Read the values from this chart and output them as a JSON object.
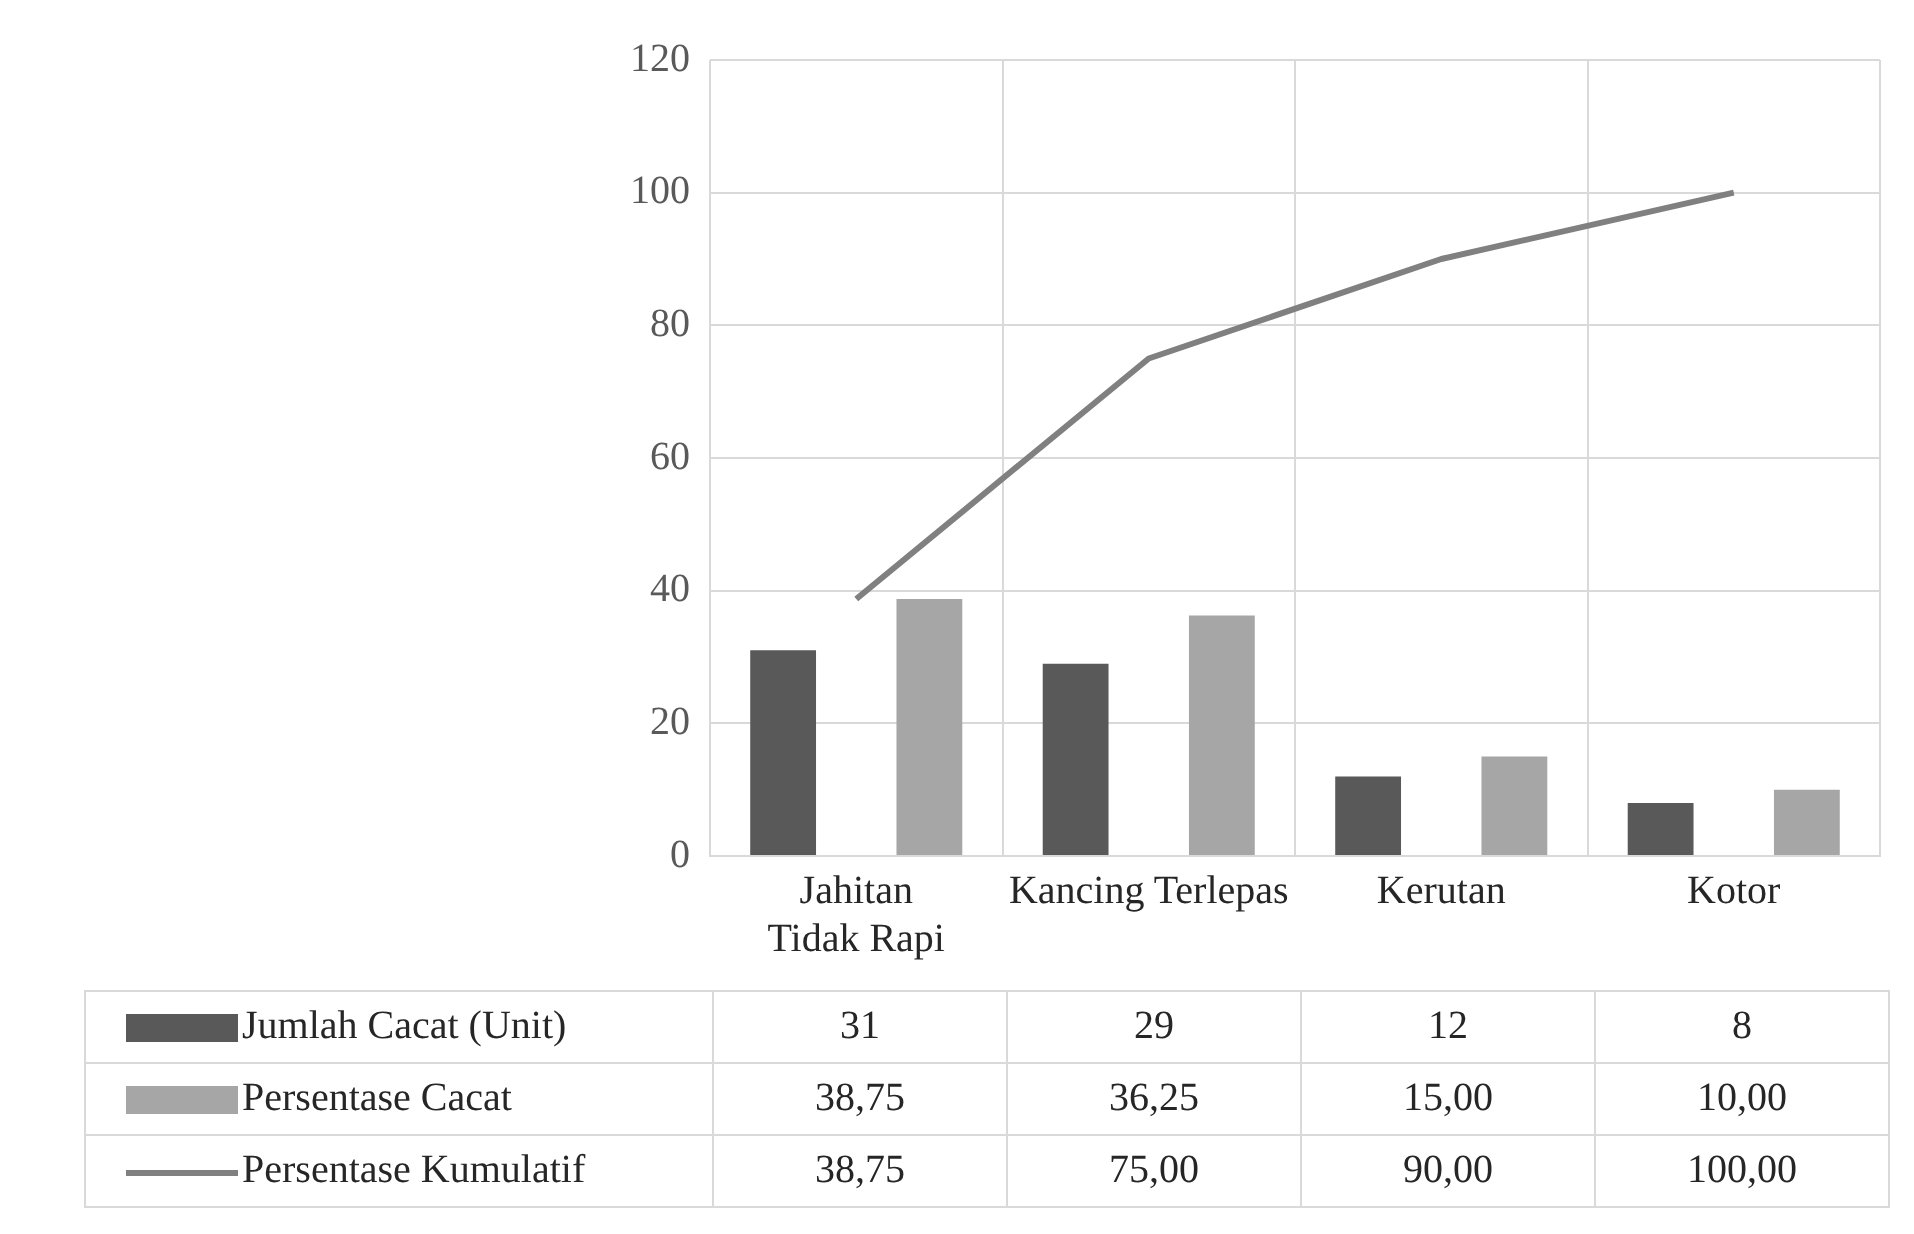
{
  "chart_data": {
    "type": "bar",
    "categories": [
      "Jahitan Tidak Rapi",
      "Kancing Terlepas",
      "Kerutan",
      "Kotor"
    ],
    "ylim": [
      0,
      120
    ],
    "yticks": [
      0,
      20,
      40,
      60,
      80,
      100,
      120
    ],
    "grid": true,
    "legend": "bottom",
    "marker": "none",
    "series": [
      {
        "name": "Jumlah Cacat (Unit)",
        "color": "#595959",
        "values": [
          31,
          29,
          12,
          8
        ],
        "value_labels": [
          "31",
          "29",
          "12",
          "8"
        ]
      },
      {
        "name": "Persentase Cacat",
        "color": "#a6a6a6",
        "values": [
          38.75,
          36.25,
          15,
          10
        ],
        "value_labels": [
          "38,75",
          "36,25",
          "15,00",
          "10,00"
        ]
      },
      {
        "name": "Persentase Kumulatif",
        "type": "line",
        "color": "#808080",
        "values": [
          38.75,
          75,
          90,
          100
        ],
        "value_labels": [
          "38,75",
          "75,00",
          "90,00",
          "100,00"
        ]
      }
    ]
  }
}
